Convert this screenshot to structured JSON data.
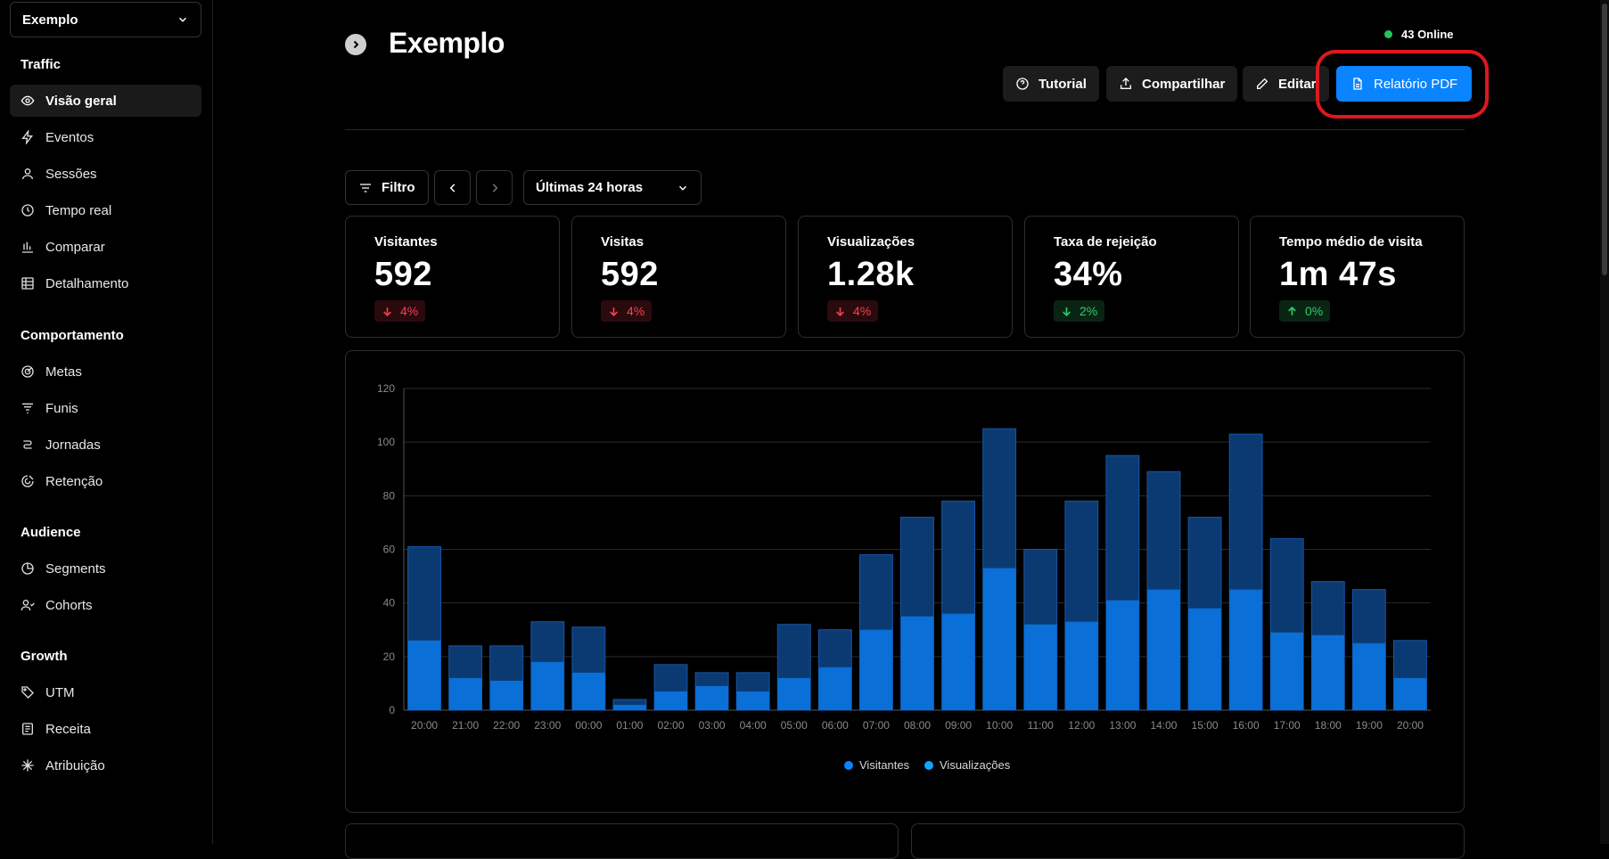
{
  "sidebar": {
    "site_name": "Exemplo",
    "sections": [
      {
        "title": "Traffic"
      },
      {
        "title": "Comportamento"
      },
      {
        "title": "Audience"
      },
      {
        "title": "Growth"
      }
    ],
    "items": [
      {
        "label": "Visão geral",
        "icon": "eye-icon"
      },
      {
        "label": "Eventos",
        "icon": "lightning-icon"
      },
      {
        "label": "Sessões",
        "icon": "user-icon"
      },
      {
        "label": "Tempo real",
        "icon": "clock-icon"
      },
      {
        "label": "Comparar",
        "icon": "bar-chart-icon"
      },
      {
        "label": "Detalhamento",
        "icon": "table-icon"
      },
      {
        "label": "Metas",
        "icon": "target-icon"
      },
      {
        "label": "Funis",
        "icon": "funnel-icon"
      },
      {
        "label": "Jornadas",
        "icon": "route-icon"
      },
      {
        "label": "Retenção",
        "icon": "magnet-icon"
      },
      {
        "label": "Segments",
        "icon": "pie-icon"
      },
      {
        "label": "Cohorts",
        "icon": "users-icon"
      },
      {
        "label": "UTM",
        "icon": "tag-icon"
      },
      {
        "label": "Receita",
        "icon": "receipt-icon"
      },
      {
        "label": "Atribuição",
        "icon": "asterisk-icon"
      }
    ]
  },
  "header": {
    "title": "Exemplo",
    "online": "43 Online",
    "online_color": "#22c55e",
    "buttons": {
      "tutorial": "Tutorial",
      "share": "Compartilhar",
      "edit": "Editar",
      "pdf": "Relatório PDF"
    },
    "accent": "#0a84ff",
    "highlight": "#e0171f"
  },
  "filters": {
    "filter_label": "Filtro",
    "range": "Últimas 24 horas"
  },
  "metrics": [
    {
      "label": "Visitantes",
      "value": "592",
      "change": "4%",
      "direction": "down"
    },
    {
      "label": "Visitas",
      "value": "592",
      "change": "4%",
      "direction": "down"
    },
    {
      "label": "Visualizações",
      "value": "1.28k",
      "change": "4%",
      "direction": "down"
    },
    {
      "label": "Taxa de rejeição",
      "value": "34%",
      "change": "2%",
      "direction": "down-good"
    },
    {
      "label": "Tempo médio de visita",
      "value": "1m 47s",
      "change": "0%",
      "direction": "up"
    }
  ],
  "chart_data": {
    "type": "bar",
    "categories": [
      "20:00",
      "21:00",
      "22:00",
      "23:00",
      "00:00",
      "01:00",
      "02:00",
      "03:00",
      "04:00",
      "05:00",
      "06:00",
      "07:00",
      "08:00",
      "09:00",
      "10:00",
      "11:00",
      "12:00",
      "13:00",
      "14:00",
      "15:00",
      "16:00",
      "17:00",
      "18:00",
      "19:00",
      "20:00"
    ],
    "series": [
      {
        "name": "Visitantes",
        "color": "#0a6fd6",
        "values": [
          26,
          12,
          11,
          18,
          14,
          2,
          7,
          9,
          7,
          12,
          16,
          30,
          35,
          36,
          53,
          32,
          33,
          41,
          45,
          38,
          45,
          29,
          28,
          25,
          12
        ]
      },
      {
        "name": "Visualizações",
        "color": "#0b3a72",
        "values": [
          61,
          24,
          24,
          33,
          31,
          4,
          17,
          14,
          14,
          32,
          30,
          58,
          72,
          78,
          105,
          60,
          78,
          95,
          89,
          72,
          103,
          64,
          48,
          45,
          26
        ]
      }
    ],
    "yticks": [
      "120",
      "100",
      "80",
      "60",
      "40",
      "20",
      "0"
    ],
    "ylim": [
      0,
      120
    ],
    "grid": true,
    "stacked_overlay": true,
    "legend_position": "bottom-center",
    "legend": [
      {
        "label": "Visitantes",
        "color": "#0a84ff"
      },
      {
        "label": "Visualizações",
        "color": "#12a3ff"
      }
    ]
  }
}
